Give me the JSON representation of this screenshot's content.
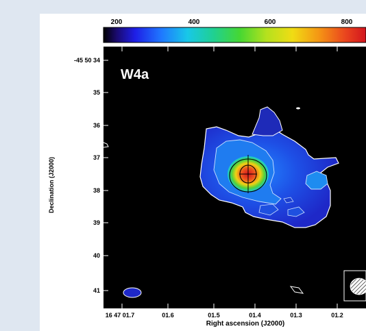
{
  "figure": {
    "panel_label": "W4a",
    "colorbar": {
      "ticks": [
        "200",
        "400",
        "600",
        "800"
      ]
    },
    "y_axis": {
      "label": "Declination (J2000)",
      "ticks": [
        "-45 50 34",
        "35",
        "36",
        "37",
        "38",
        "39",
        "40",
        "41"
      ]
    },
    "x_axis": {
      "label": "Right ascension (J2000)",
      "ticks": [
        "16 47 01.7",
        "01.6",
        "01.5",
        "01.4",
        "01.3",
        "01.2"
      ]
    },
    "colors": {
      "background": "#000000",
      "peak": "#e0301e",
      "contour_white": "#ffffff",
      "contour_black": "#000000"
    },
    "icons": {
      "beam": "beam-ellipse-icon"
    }
  }
}
